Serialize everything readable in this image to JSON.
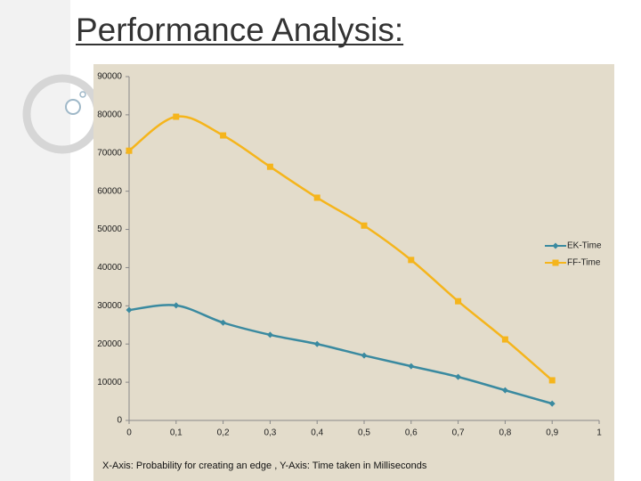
{
  "chart_data": {
    "type": "line",
    "title": "Performance Analysis:",
    "x_label": "X-Axis: Probability for creating an edge , Y-Axis: Time taken in Milliseconds",
    "x": [
      0,
      0.1,
      0.2,
      0.3,
      0.4,
      0.5,
      0.6,
      0.7,
      0.8,
      0.9
    ],
    "series": [
      {
        "name": "EK-Time",
        "color": "#3a8aa0",
        "marker": "diamond",
        "values": [
          28900,
          30100,
          25600,
          22400,
          20000,
          17000,
          14200,
          11400,
          7900,
          4400
        ]
      },
      {
        "name": "FF-Time",
        "color": "#f5b51c",
        "marker": "square",
        "values": [
          70600,
          79500,
          74600,
          66400,
          58300,
          51000,
          42000,
          31200,
          21200,
          10500
        ]
      }
    ],
    "xlim": [
      0,
      1
    ],
    "xticks": [
      0,
      {
        "value": 0.1,
        "label": "0,1"
      },
      {
        "value": 0.2,
        "label": "0,2"
      },
      {
        "value": 0.3,
        "label": "0,3"
      },
      {
        "value": 0.4,
        "label": "0,4"
      },
      {
        "value": 0.5,
        "label": "0,5"
      },
      {
        "value": 0.6,
        "label": "0,6"
      },
      {
        "value": 0.7,
        "label": "0,7"
      },
      {
        "value": 0.8,
        "label": "0,8"
      },
      {
        "value": 0.9,
        "label": "0,9"
      },
      1
    ],
    "ylim": [
      0,
      90000
    ],
    "yticks": [
      0,
      10000,
      20000,
      30000,
      40000,
      50000,
      60000,
      70000,
      80000,
      90000
    ],
    "grid": false,
    "legend": "right",
    "smooth": true,
    "background": "#e3dccb"
  }
}
